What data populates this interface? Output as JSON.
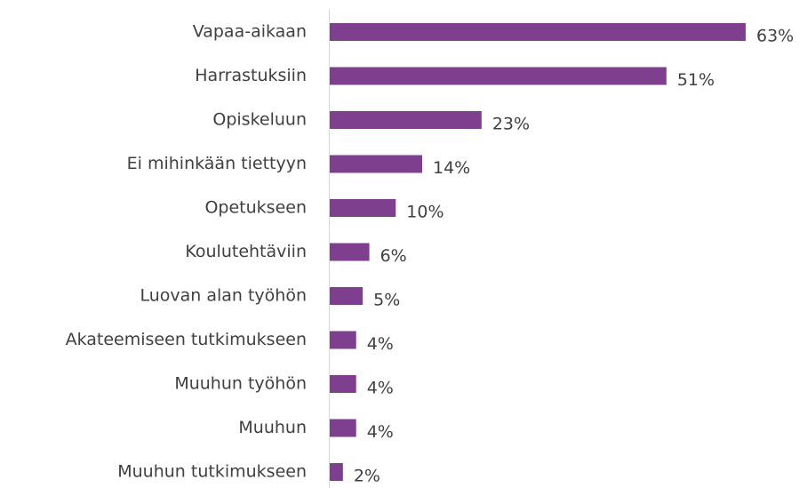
{
  "chart_data": {
    "type": "barh",
    "categories": [
      "Vapaa-aikaan",
      "Harrastuksiin",
      "Opiskeluun",
      "Ei mihinkään tiettyyn",
      "Opetukseen",
      "Koulutehtäviin",
      "Luovan alan työhön",
      "Akateemiseen tutkimukseen",
      "Muuhun työhön",
      "Muuhun",
      "Muuhun tutkimukseen"
    ],
    "values": [
      63,
      51,
      23,
      14,
      10,
      6,
      5,
      4,
      4,
      4,
      2
    ],
    "value_labels": [
      "63%",
      "51%",
      "23%",
      "14%",
      "10%",
      "6%",
      "5%",
      "4%",
      "4%",
      "4%",
      "2%"
    ],
    "color": "#7e3f8f"
  }
}
